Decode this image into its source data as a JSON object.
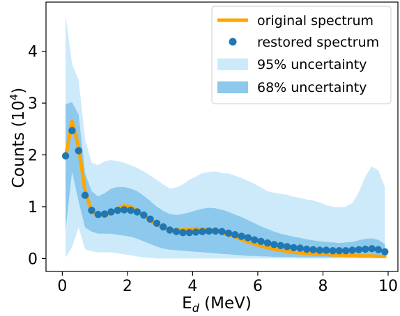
{
  "chart_data": {
    "type": "line",
    "xlabel": "E",
    "xlabel_sub": "d",
    "xlabel_unit": " (MeV)",
    "ylabel": "Counts (10",
    "ylabel_sup": "4",
    "ylabel_close": ")",
    "xlim": [
      -0.5,
      10.3
    ],
    "ylim": [
      -0.25,
      4.95
    ],
    "xticks": [
      0,
      2,
      4,
      6,
      8,
      10
    ],
    "yticks": [
      0,
      1,
      2,
      3,
      4
    ],
    "xtick_labels": [
      "0",
      "2",
      "4",
      "6",
      "8",
      "10"
    ],
    "ytick_labels": [
      "0",
      "1",
      "2",
      "3",
      "4"
    ],
    "grid": false,
    "legend_position": "top-right",
    "legend": [
      {
        "label": " original spectrum",
        "kind": "line",
        "color": "#ffa500"
      },
      {
        "label": "restored spectrum",
        "kind": "marker",
        "color": "#1f77b4"
      },
      {
        "label": "95% uncertainty",
        "kind": "band",
        "color": "#cdeafb"
      },
      {
        "label": "68% uncertainty",
        "kind": "band",
        "color": "#8dc9ec"
      }
    ],
    "x": [
      0.1,
      0.3,
      0.5,
      0.7,
      0.9,
      1.1,
      1.3,
      1.5,
      1.7,
      1.9,
      2.1,
      2.3,
      2.5,
      2.7,
      2.9,
      3.1,
      3.3,
      3.5,
      3.7,
      3.9,
      4.1,
      4.3,
      4.5,
      4.7,
      4.9,
      5.1,
      5.3,
      5.5,
      5.7,
      5.9,
      6.1,
      6.3,
      6.5,
      6.7,
      6.9,
      7.1,
      7.3,
      7.5,
      7.7,
      7.9,
      8.1,
      8.3,
      8.5,
      8.7,
      8.9,
      9.1,
      9.3,
      9.5,
      9.7,
      9.9
    ],
    "series": [
      {
        "name": "original spectrum",
        "color": "#ffa500",
        "values": [
          1.95,
          2.65,
          2.15,
          1.3,
          0.92,
          0.82,
          0.82,
          0.88,
          0.96,
          1.02,
          1.0,
          0.92,
          0.83,
          0.73,
          0.65,
          0.59,
          0.56,
          0.55,
          0.55,
          0.56,
          0.57,
          0.57,
          0.56,
          0.54,
          0.5,
          0.46,
          0.42,
          0.37,
          0.32,
          0.28,
          0.24,
          0.21,
          0.18,
          0.16,
          0.14,
          0.12,
          0.11,
          0.1,
          0.09,
          0.08,
          0.08,
          0.07,
          0.07,
          0.06,
          0.06,
          0.05,
          0.05,
          0.05,
          0.04,
          0.04
        ]
      },
      {
        "name": "restored spectrum",
        "color": "#1f77b4",
        "values": [
          1.98,
          2.47,
          2.08,
          1.22,
          0.93,
          0.85,
          0.86,
          0.9,
          0.93,
          0.94,
          0.93,
          0.9,
          0.84,
          0.76,
          0.68,
          0.61,
          0.55,
          0.52,
          0.5,
          0.5,
          0.51,
          0.52,
          0.53,
          0.53,
          0.52,
          0.49,
          0.46,
          0.43,
          0.4,
          0.36,
          0.33,
          0.3,
          0.27,
          0.25,
          0.23,
          0.21,
          0.2,
          0.18,
          0.17,
          0.16,
          0.16,
          0.15,
          0.15,
          0.15,
          0.16,
          0.17,
          0.18,
          0.19,
          0.17,
          0.13
        ]
      }
    ],
    "bands": [
      {
        "name": "95% uncertainty",
        "color": "#cdeafb",
        "upper": [
          4.7,
          3.75,
          3.45,
          2.3,
          1.85,
          1.8,
          1.88,
          1.9,
          1.88,
          1.85,
          1.8,
          1.75,
          1.68,
          1.6,
          1.52,
          1.43,
          1.35,
          1.37,
          1.43,
          1.52,
          1.58,
          1.65,
          1.67,
          1.68,
          1.65,
          1.64,
          1.6,
          1.55,
          1.5,
          1.44,
          1.37,
          1.3,
          1.27,
          1.25,
          1.23,
          1.19,
          1.17,
          1.14,
          1.12,
          1.08,
          1.03,
          1.0,
          0.99,
          1.0,
          1.07,
          1.28,
          1.58,
          1.78,
          1.7,
          1.38
        ],
        "lower": [
          0.02,
          0.22,
          0.6,
          0.18,
          0.14,
          0.12,
          0.12,
          0.12,
          0.1,
          0.08,
          0.06,
          0.04,
          0.02,
          0.01,
          0.0,
          0.0,
          0.0,
          0.0,
          0.0,
          0.0,
          0.0,
          0.0,
          0.0,
          0.0,
          0.0,
          0.0,
          0.0,
          0.0,
          0.0,
          0.0,
          0.0,
          0.0,
          0.0,
          0.0,
          0.0,
          0.0,
          0.0,
          0.0,
          0.0,
          0.0,
          0.0,
          0.0,
          0.0,
          0.0,
          0.0,
          0.0,
          0.0,
          0.0,
          0.0,
          0.0
        ]
      },
      {
        "name": "68% uncertainty",
        "color": "#8dc9ec",
        "upper": [
          2.98,
          3.02,
          2.78,
          1.65,
          1.3,
          1.2,
          1.26,
          1.35,
          1.38,
          1.38,
          1.35,
          1.3,
          1.21,
          1.11,
          1.0,
          0.92,
          0.86,
          0.84,
          0.86,
          0.89,
          0.93,
          0.96,
          0.98,
          0.97,
          0.94,
          0.9,
          0.85,
          0.8,
          0.74,
          0.68,
          0.62,
          0.57,
          0.52,
          0.48,
          0.45,
          0.42,
          0.4,
          0.37,
          0.35,
          0.33,
          0.32,
          0.31,
          0.3,
          0.31,
          0.32,
          0.35,
          0.38,
          0.39,
          0.36,
          0.28
        ],
        "lower": [
          0.55,
          1.68,
          1.1,
          0.6,
          0.52,
          0.48,
          0.48,
          0.48,
          0.46,
          0.44,
          0.42,
          0.38,
          0.33,
          0.28,
          0.23,
          0.19,
          0.17,
          0.16,
          0.15,
          0.14,
          0.13,
          0.12,
          0.11,
          0.1,
          0.09,
          0.08,
          0.07,
          0.06,
          0.05,
          0.05,
          0.04,
          0.04,
          0.03,
          0.03,
          0.03,
          0.03,
          0.02,
          0.02,
          0.02,
          0.02,
          0.02,
          0.02,
          0.02,
          0.02,
          0.02,
          0.02,
          0.02,
          0.02,
          0.02,
          0.02
        ]
      }
    ]
  }
}
